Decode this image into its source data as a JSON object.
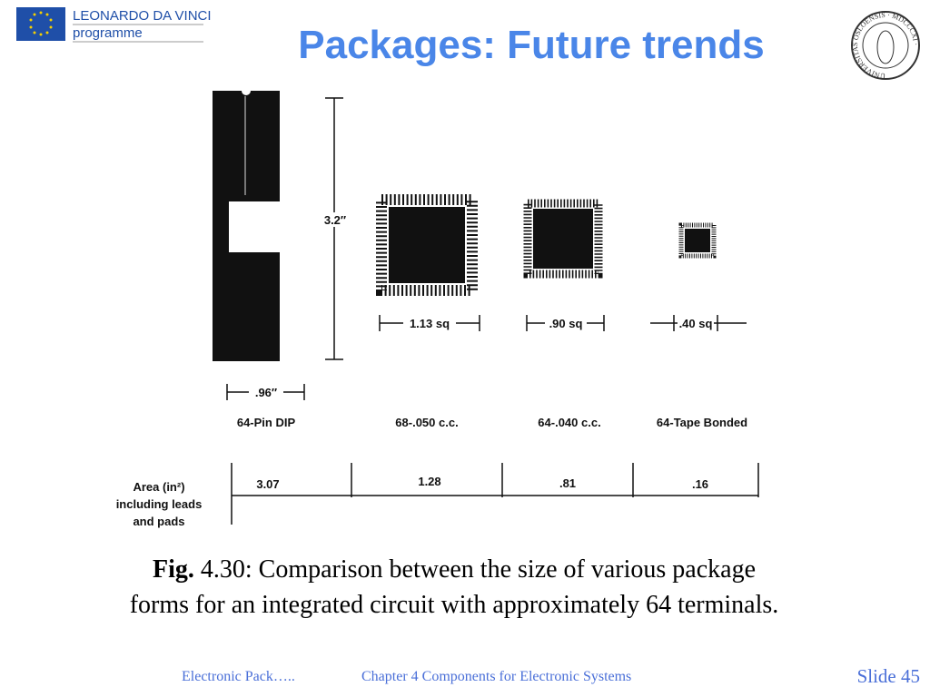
{
  "header": {
    "logo": {
      "line1": "LEONARDO DA VINCI",
      "line2": "programme"
    },
    "title": "Packages: Future trends",
    "seal": "UNIVERSITAS OSLOENSIS · MDCCCXI ·"
  },
  "figure": {
    "height_dim": "3.2″",
    "width_dims": [
      "1.13 sq",
      ".90 sq",
      ".40 sq"
    ],
    "dip_width": ".96″",
    "packages": [
      "64-Pin DIP",
      "68-.050 c.c.",
      "64-.040 c.c.",
      "64-Tape Bonded"
    ],
    "area_label": [
      "Area (in²)",
      "including leads",
      "and pads"
    ],
    "areas": [
      "3.07",
      "1.28",
      ".81",
      ".16"
    ]
  },
  "caption": {
    "label": "Fig.",
    "text1": " 4.30: Comparison between the size of various package",
    "text2": "forms for an integrated circuit with approximately 64 terminals."
  },
  "footer": {
    "left": "Electronic Pack…..",
    "center": "Chapter 4 Components for Electronic Systems",
    "slide": "Slide 45"
  }
}
